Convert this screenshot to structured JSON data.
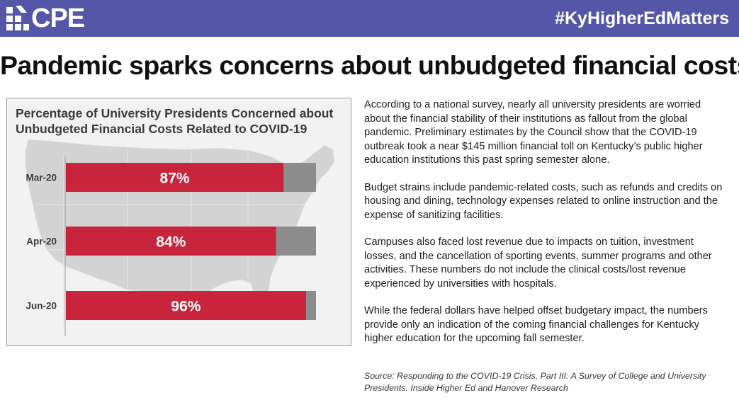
{
  "header": {
    "logo_text": "CPE",
    "hashtag": "#KyHigherEdMatters",
    "colors": {
      "bar": "#5457a8"
    }
  },
  "headline": "Pandemic sparks concerns about unbudgeted financial costs",
  "chart_data": {
    "type": "bar",
    "orientation": "horizontal",
    "stacked": true,
    "title": "Percentage of University Presidents Concerned about Unbudgeted Financial Costs Related to COVID-19",
    "categories": [
      "Mar-20",
      "Apr-20",
      "Jun-20"
    ],
    "values": [
      87,
      84,
      96
    ],
    "value_labels": [
      "87%",
      "84%",
      "96%"
    ],
    "xlim": [
      0,
      100
    ],
    "grid": false,
    "legend": "none",
    "colors": {
      "concerned": "#c8243c",
      "remainder": "#8c8c8c",
      "background": "#f2f2f2",
      "map": "#d2d2d2"
    }
  },
  "body": {
    "paragraphs": [
      "According to a national survey, nearly all university presidents are worried about the financial stability of their institutions as fallout from the global pandemic. Preliminary estimates by the Council show that the COVID-19 outbreak took a near $145 million financial toll on Kentucky’s public higher education institutions this past spring semester alone.",
      "Budget strains include pandemic-related costs, such as refunds and credits on housing and dining, technology expenses related to online instruction and the expense of sanitizing facilities.",
      "Campuses also faced lost revenue due to impacts on tuition, investment losses, and the cancellation of sporting events, summer programs and other activities. These numbers do not include the clinical costs/lost revenue experienced by universities with hospitals.",
      "While the federal dollars have helped offset budgetary impact, the numbers provide only an indication of the coming financial challenges for Kentucky higher education for the upcoming fall semester."
    ]
  },
  "source": "Source: Responding to the COVID-19 Crisis, Part III: A Survey of College and University Presidents. Inside Higher Ed and Hanover Research"
}
